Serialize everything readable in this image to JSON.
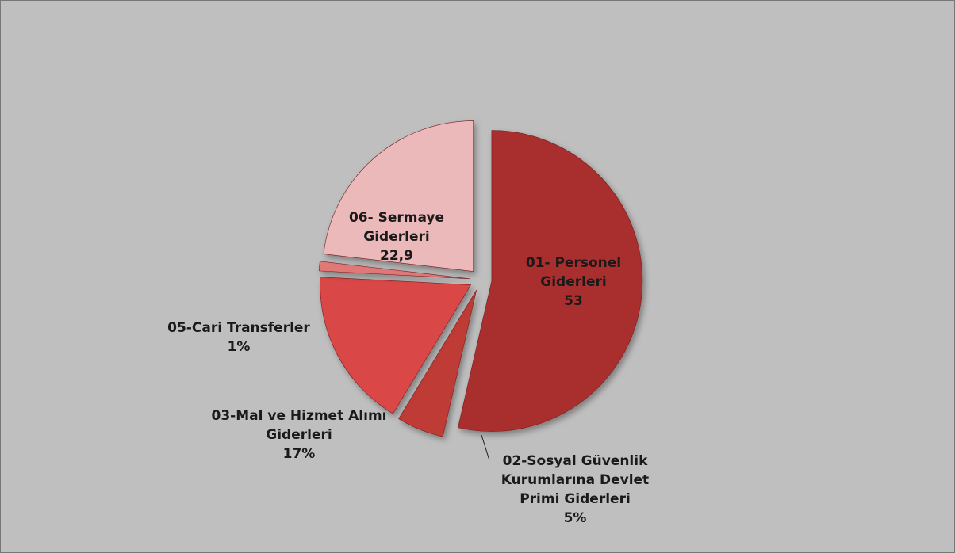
{
  "chart_data": {
    "type": "pie",
    "categories": [
      "01- Personel Giderleri",
      "02-Sosyal Güvenlik Kurumlarına Devlet Primi Giderleri",
      "03-Mal ve Hizmet Alımı Giderleri",
      "05-Cari Transferler",
      "06- Sermaye Giderleri"
    ],
    "values": [
      53,
      5,
      17,
      1,
      22.9
    ],
    "value_labels": [
      "53",
      "5%",
      "17%",
      "1%",
      "22,9"
    ],
    "colors": [
      "#a92e2e",
      "#bf3a36",
      "#d94646",
      "#e07878",
      "#ebb9b9"
    ]
  }
}
